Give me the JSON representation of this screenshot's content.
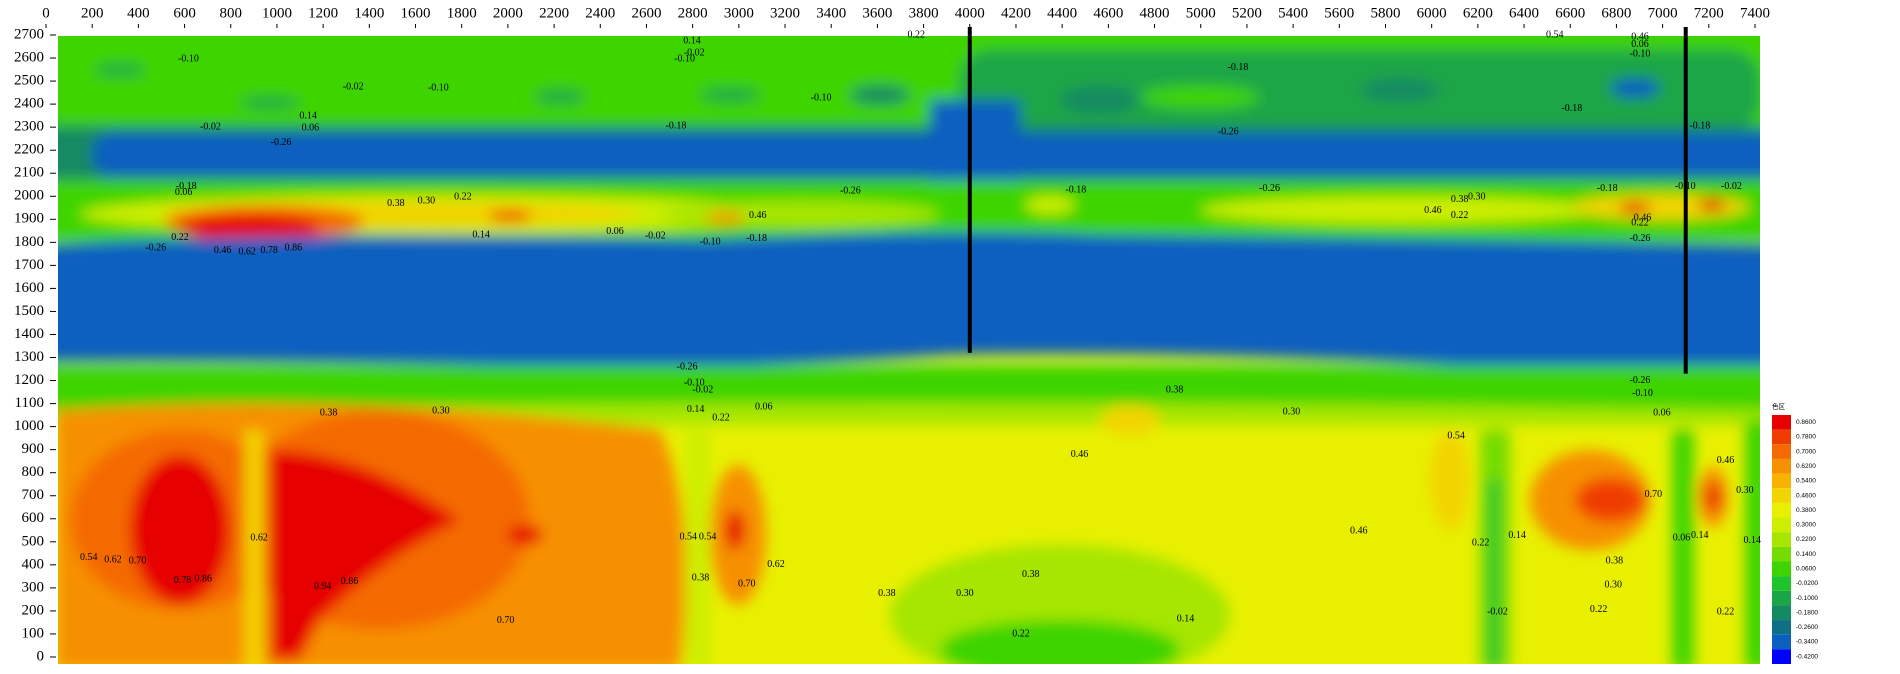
{
  "chart_data": {
    "type": "contour",
    "xlim": [
      0,
      7400
    ],
    "ylim": [
      0,
      2700
    ],
    "xticks": [
      0,
      200,
      400,
      600,
      800,
      1000,
      1200,
      1400,
      1600,
      1800,
      2000,
      2200,
      2400,
      2600,
      2800,
      3000,
      3200,
      3400,
      3600,
      3800,
      4000,
      4200,
      4400,
      4600,
      4800,
      5000,
      5200,
      5400,
      5600,
      5800,
      6000,
      6200,
      6400,
      6600,
      6800,
      7000,
      7200,
      7400
    ],
    "yticks": [
      0,
      100,
      200,
      300,
      400,
      500,
      600,
      700,
      800,
      900,
      1000,
      1100,
      1200,
      1300,
      1400,
      1500,
      1600,
      1700,
      1800,
      1900,
      2000,
      2100,
      2200,
      2300,
      2400,
      2500,
      2600,
      2700
    ],
    "wells": [
      {
        "x": 4000,
        "top": 2700,
        "bottom": 1320
      },
      {
        "x": 7100,
        "top": 2700,
        "bottom": 1230
      }
    ],
    "colorbar": {
      "title": "色区",
      "ticks": [
        {
          "value": 0.86,
          "label": "0.8600"
        },
        {
          "value": 0.78,
          "label": "0.7800"
        },
        {
          "value": 0.7,
          "label": "0.7000"
        },
        {
          "value": 0.62,
          "label": "0.6200"
        },
        {
          "value": 0.54,
          "label": "0.5400"
        },
        {
          "value": 0.46,
          "label": "0.4600"
        },
        {
          "value": 0.38,
          "label": "0.3800"
        },
        {
          "value": 0.3,
          "label": "0.3000"
        },
        {
          "value": 0.22,
          "label": "0.2200"
        },
        {
          "value": 0.14,
          "label": "0.1400"
        },
        {
          "value": 0.06,
          "label": "0.0600"
        },
        {
          "value": -0.02,
          "label": "-0.0200"
        },
        {
          "value": -0.1,
          "label": "-0.1000"
        },
        {
          "value": -0.18,
          "label": "-0.1800"
        },
        {
          "value": -0.26,
          "label": "-0.2600"
        },
        {
          "value": -0.34,
          "label": "-0.3400"
        },
        {
          "value": -0.42,
          "label": "-0.4200"
        }
      ],
      "colors": [
        "#e60000",
        "#ef3c00",
        "#f46a00",
        "#f79000",
        "#f8b200",
        "#f2d400",
        "#e8f000",
        "#cdee00",
        "#a6e600",
        "#74dc00",
        "#3ed400",
        "#1fc42a",
        "#1aa646",
        "#148a62",
        "#0f6f86",
        "#0a5fc0",
        "#0000ff"
      ]
    },
    "annotations": [
      {
        "text": "-0.10",
        "x": 617,
        "y": 2595
      },
      {
        "text": "0.14",
        "x": 2797,
        "y": 2674
      },
      {
        "text": "-0.02",
        "x": 2807,
        "y": 2621
      },
      {
        "text": "-0.10",
        "x": 2765,
        "y": 2595
      },
      {
        "text": "0.22",
        "x": 3768,
        "y": 2700
      },
      {
        "text": "0.54",
        "x": 6533,
        "y": 2700
      },
      {
        "text": "0.46",
        "x": 6902,
        "y": 2690
      },
      {
        "text": "0.06",
        "x": 6902,
        "y": 2658
      },
      {
        "text": "-0.10",
        "x": 6902,
        "y": 2616
      },
      {
        "text": "-0.18",
        "x": 5161,
        "y": 2558
      },
      {
        "text": "-0.02",
        "x": 1330,
        "y": 2474
      },
      {
        "text": "-0.10",
        "x": 1699,
        "y": 2468
      },
      {
        "text": "-0.10",
        "x": 3356,
        "y": 2426
      },
      {
        "text": "0.14",
        "x": 1135,
        "y": 2347
      },
      {
        "text": "0.06",
        "x": 1145,
        "y": 2295
      },
      {
        "text": "-0.02",
        "x": 712,
        "y": 2300
      },
      {
        "text": "-0.26",
        "x": 1018,
        "y": 2232
      },
      {
        "text": "-0.18",
        "x": 2728,
        "y": 2305
      },
      {
        "text": "-0.26",
        "x": 5119,
        "y": 2279
      },
      {
        "text": "-0.18",
        "x": 6607,
        "y": 2379
      },
      {
        "text": "-0.18",
        "x": 7161,
        "y": 2305
      },
      {
        "text": "-0.18",
        "x": 607,
        "y": 2042
      },
      {
        "text": "0.06",
        "x": 596,
        "y": 2016
      },
      {
        "text": "-0.26",
        "x": 3483,
        "y": 2021
      },
      {
        "text": "-0.18",
        "x": 4459,
        "y": 2026
      },
      {
        "text": "-0.26",
        "x": 5298,
        "y": 2032
      },
      {
        "text": "-0.18",
        "x": 6760,
        "y": 2032
      },
      {
        "text": "-0.10",
        "x": 7098,
        "y": 2042
      },
      {
        "text": "-0.02",
        "x": 7298,
        "y": 2042
      },
      {
        "text": "0.38",
        "x": 1515,
        "y": 1968
      },
      {
        "text": "0.30",
        "x": 1647,
        "y": 1979
      },
      {
        "text": "0.22",
        "x": 1805,
        "y": 1995
      },
      {
        "text": "0.46",
        "x": 3082,
        "y": 1916
      },
      {
        "text": "0.38",
        "x": 6121,
        "y": 1984
      },
      {
        "text": "0.30",
        "x": 6195,
        "y": 1995
      },
      {
        "text": "0.46",
        "x": 6005,
        "y": 1937
      },
      {
        "text": "0.22",
        "x": 6121,
        "y": 1916
      },
      {
        "text": "0.46",
        "x": 6913,
        "y": 1905
      },
      {
        "text": "0.22",
        "x": 6902,
        "y": 1884
      },
      {
        "text": "-0.26",
        "x": 6902,
        "y": 1816
      },
      {
        "text": "0.06",
        "x": 2464,
        "y": 1847
      },
      {
        "text": "-0.02",
        "x": 2638,
        "y": 1826
      },
      {
        "text": "-0.10",
        "x": 2876,
        "y": 1800
      },
      {
        "text": "-0.18",
        "x": 3077,
        "y": 1816
      },
      {
        "text": "0.14",
        "x": 1884,
        "y": 1832
      },
      {
        "text": "0.22",
        "x": 580,
        "y": 1821
      },
      {
        "text": "-0.26",
        "x": 475,
        "y": 1774
      },
      {
        "text": "0.46",
        "x": 765,
        "y": 1763
      },
      {
        "text": "0.62",
        "x": 871,
        "y": 1758
      },
      {
        "text": "0.78",
        "x": 966,
        "y": 1763
      },
      {
        "text": "0.86",
        "x": 1071,
        "y": 1774
      },
      {
        "text": "-0.26",
        "x": 2776,
        "y": 1258
      },
      {
        "text": "-0.10",
        "x": 2807,
        "y": 1189
      },
      {
        "text": "-0.02",
        "x": 2844,
        "y": 1158
      },
      {
        "text": "0.14",
        "x": 2813,
        "y": 1074
      },
      {
        "text": "0.22",
        "x": 2923,
        "y": 1037
      },
      {
        "text": "0.06",
        "x": 3108,
        "y": 1084
      },
      {
        "text": "0.38",
        "x": 1224,
        "y": 1058
      },
      {
        "text": "0.30",
        "x": 1710,
        "y": 1068
      },
      {
        "text": "0.38",
        "x": 4887,
        "y": 1158
      },
      {
        "text": "0.30",
        "x": 5393,
        "y": 1063
      },
      {
        "text": "-0.26",
        "x": 6902,
        "y": 1200
      },
      {
        "text": "-0.10",
        "x": 6913,
        "y": 1142
      },
      {
        "text": "0.06",
        "x": 6997,
        "y": 1058
      },
      {
        "text": "0.54",
        "x": 6106,
        "y": 958
      },
      {
        "text": "0.46",
        "x": 4475,
        "y": 879
      },
      {
        "text": "0.46",
        "x": 7272,
        "y": 853
      },
      {
        "text": "0.30",
        "x": 7356,
        "y": 721
      },
      {
        "text": "0.70",
        "x": 6960,
        "y": 705
      },
      {
        "text": "0.46",
        "x": 5684,
        "y": 547
      },
      {
        "text": "0.14",
        "x": 7161,
        "y": 526
      },
      {
        "text": "0.06",
        "x": 7082,
        "y": 516
      },
      {
        "text": "0.14",
        "x": 6370,
        "y": 526
      },
      {
        "text": "0.22",
        "x": 6212,
        "y": 495
      },
      {
        "text": "0.14",
        "x": 7388,
        "y": 505
      },
      {
        "text": "0.54",
        "x": 185,
        "y": 432
      },
      {
        "text": "0.62",
        "x": 290,
        "y": 421
      },
      {
        "text": "0.70",
        "x": 396,
        "y": 416
      },
      {
        "text": "0.78",
        "x": 591,
        "y": 332
      },
      {
        "text": "0.86",
        "x": 681,
        "y": 337
      },
      {
        "text": "0.62",
        "x": 923,
        "y": 516
      },
      {
        "text": "0.94",
        "x": 1198,
        "y": 305
      },
      {
        "text": "0.86",
        "x": 1314,
        "y": 326
      },
      {
        "text": "0.54",
        "x": 2781,
        "y": 521
      },
      {
        "text": "0.54",
        "x": 2865,
        "y": 521
      },
      {
        "text": "0.38",
        "x": 2834,
        "y": 342
      },
      {
        "text": "0.70",
        "x": 3034,
        "y": 316
      },
      {
        "text": "0.62",
        "x": 3161,
        "y": 400
      },
      {
        "text": "0.38",
        "x": 3641,
        "y": 274
      },
      {
        "text": "0.30",
        "x": 3979,
        "y": 274
      },
      {
        "text": "0.38",
        "x": 4264,
        "y": 358
      },
      {
        "text": "0.14",
        "x": 4934,
        "y": 163
      },
      {
        "text": "0.22",
        "x": 4222,
        "y": 100
      },
      {
        "text": "0.70",
        "x": 1990,
        "y": 158
      },
      {
        "text": "0.38",
        "x": 6791,
        "y": 416
      },
      {
        "text": "0.30",
        "x": 6786,
        "y": 311
      },
      {
        "text": "0.22",
        "x": 6723,
        "y": 205
      },
      {
        "text": "0.22",
        "x": 7272,
        "y": 195
      },
      {
        "text": "-0.02",
        "x": 6285,
        "y": 195
      }
    ]
  }
}
